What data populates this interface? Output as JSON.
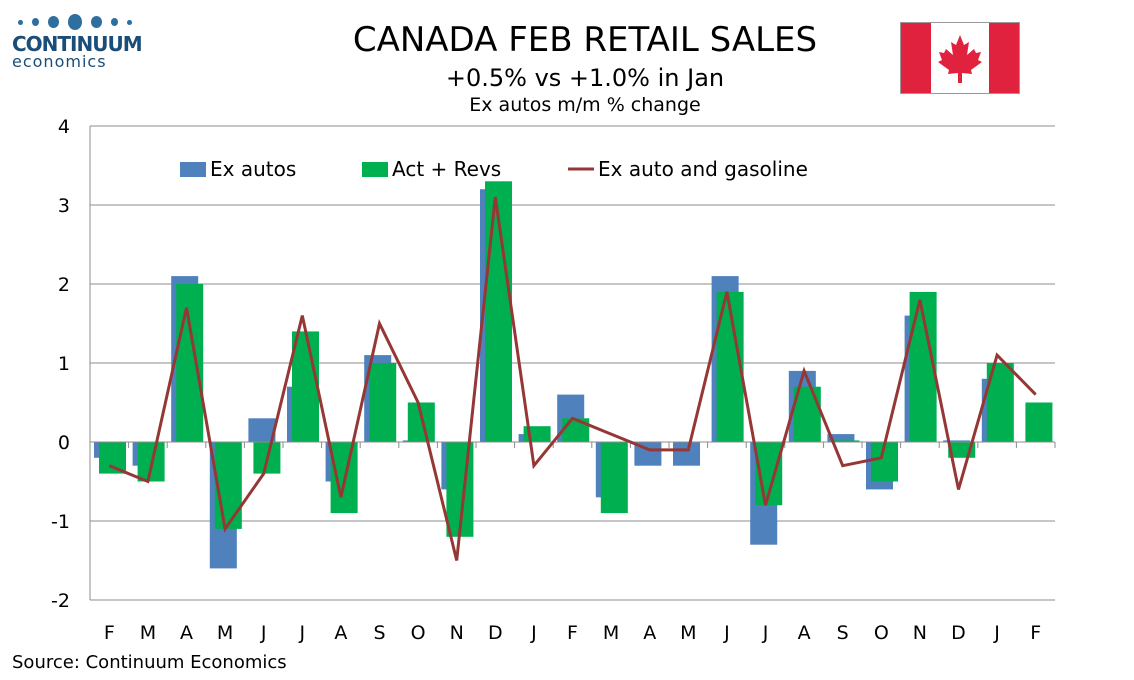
{
  "logo": {
    "name": "CONTINUUM",
    "sub": "economics"
  },
  "title": "CANADA FEB RETAIL SALES",
  "subtitle": "+0.5% vs +1.0% in Jan",
  "subtitle2": "Ex autos m/m % change",
  "source": "Source: Continuum Economics",
  "colors": {
    "ex_autos": "#4f81bd",
    "act_revs": "#00b050",
    "line": "#953735"
  },
  "chart_data": {
    "type": "bar",
    "title": "CANADA FEB RETAIL SALES",
    "ylim": [
      -2,
      4
    ],
    "yticks": [
      -2,
      -1,
      0,
      1,
      2,
      3,
      4
    ],
    "grid": true,
    "legend": "top",
    "categories": [
      "F",
      "M",
      "A",
      "M",
      "J",
      "J",
      "A",
      "S",
      "O",
      "N",
      "D",
      "J",
      "F",
      "M",
      "A",
      "M",
      "J",
      "J",
      "A",
      "S",
      "O",
      "N",
      "D",
      "J",
      "F"
    ],
    "series": [
      {
        "name": "Ex autos",
        "type": "bar",
        "values": [
          -0.2,
          -0.3,
          2.1,
          -1.6,
          0.3,
          0.7,
          -0.5,
          1.1,
          0.02,
          -0.6,
          3.2,
          0.1,
          0.6,
          -0.7,
          -0.3,
          -0.3,
          2.1,
          -1.3,
          0.9,
          0.1,
          -0.6,
          1.6,
          0.02,
          0.8,
          null
        ]
      },
      {
        "name": "Act + Revs",
        "type": "bar",
        "values": [
          -0.4,
          -0.5,
          2.0,
          -1.1,
          -0.4,
          1.4,
          -0.9,
          1.0,
          0.5,
          -1.2,
          3.3,
          0.2,
          0.3,
          -0.9,
          null,
          null,
          1.9,
          -0.8,
          0.7,
          0.02,
          -0.5,
          1.9,
          -0.2,
          1.0,
          0.5
        ]
      },
      {
        "name": "Ex auto and gasoline",
        "type": "line",
        "values": [
          -0.3,
          -0.5,
          1.7,
          -1.1,
          -0.4,
          1.6,
          -0.7,
          1.5,
          0.5,
          -1.5,
          3.1,
          -0.3,
          0.3,
          0.1,
          -0.1,
          -0.1,
          1.9,
          -0.8,
          0.9,
          -0.3,
          -0.2,
          1.8,
          -0.6,
          1.1,
          0.6
        ]
      }
    ]
  }
}
